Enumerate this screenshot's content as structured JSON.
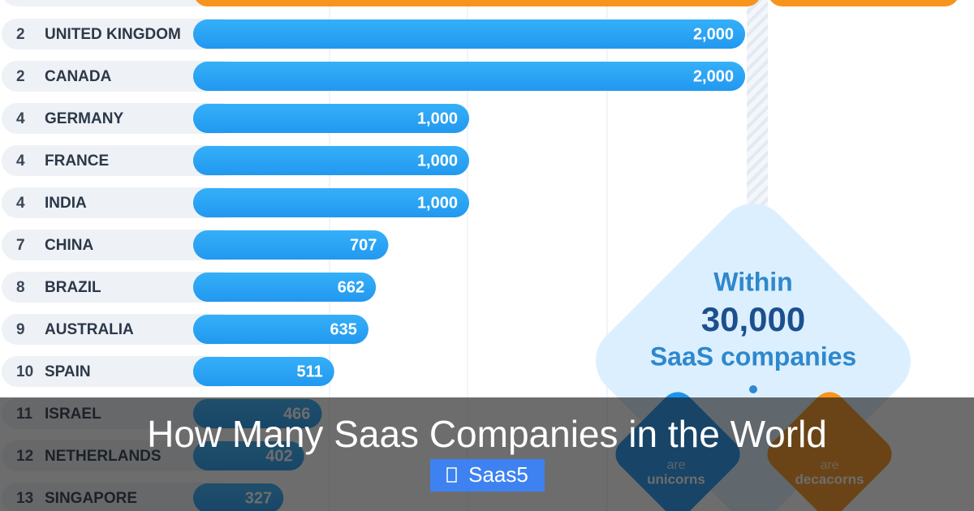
{
  "chart_data": {
    "type": "bar",
    "orientation": "horizontal",
    "ranks": [
      2,
      2,
      4,
      4,
      4,
      7,
      8,
      9,
      10,
      11,
      12,
      13
    ],
    "categories": [
      "UNITED KINGDOM",
      "CANADA",
      "GERMANY",
      "FRANCE",
      "INDIA",
      "CHINA",
      "BRAZIL",
      "AUSTRALIA",
      "SPAIN",
      "ISRAEL",
      "NETHERLANDS",
      "SINGAPORE"
    ],
    "values": [
      2000,
      2000,
      1000,
      1000,
      1000,
      707,
      662,
      635,
      511,
      466,
      402,
      327
    ],
    "value_labels": [
      "2,000",
      "2,000",
      "1,000",
      "1,000",
      "1,000",
      "707",
      "662",
      "635",
      "511",
      "466",
      "402",
      "327"
    ],
    "color": "#2aa5f4",
    "xlim": [
      0,
      2000
    ],
    "callout": {
      "line1": "Within",
      "line2": "30,000",
      "line3": "SaaS companies",
      "unicorns": [
        "are",
        "unicorns"
      ],
      "decacorns": [
        "are",
        "decacorns"
      ]
    }
  },
  "overlay": {
    "title": "How Many Saas Companies in the World",
    "badge": "Saas5"
  }
}
